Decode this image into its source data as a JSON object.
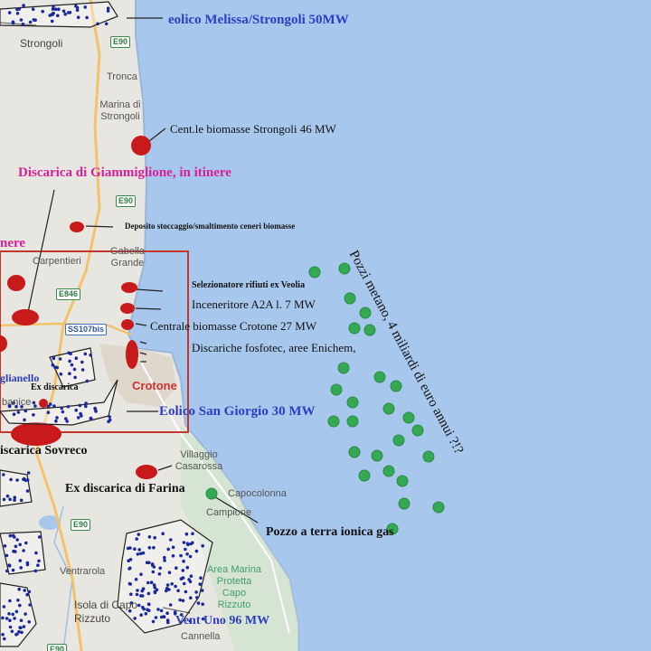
{
  "colors": {
    "sea": "#a8c7ec",
    "land": "#e8e6e0",
    "park": "#cfe3cf",
    "red_marker": "#c8191b",
    "gas_well_marker": "#34a853",
    "wind_dot": "#1c2a99",
    "annotation_blue": "#2b3fc4",
    "annotation_pink": "#d8209a",
    "highlight_box": "#c0392b"
  },
  "annotations": {
    "eolico_melissa": "eolico Melissa/Strongoli 50MW",
    "biomasse_strongoli": "Cent.le biomasse Strongoli 46 MW",
    "discarica_giammiglione": "Discarica di Giammiglione, in itinere",
    "deposito_ceneri": "Deposito stoccaggio/smaltimento ceneri biomasse",
    "itinere_fragment": "nere",
    "selezionatore_veolia": "Selezionatore rifiuti ex Veolia",
    "inceneritore_a2a": "Inceneritore A2A l. 7 MW",
    "biomasse_crotone": "Centrale biomasse Crotone 27 MW",
    "discariche_fosfotec": "Discariche fosfotec, aree Enichem,",
    "pozzi_metano": "Pozzi metano, 4 miliardi di euro annui ?!?",
    "columbra_fragment": "glianello",
    "ex_discarica": "Ex discarica",
    "eolico_san_giorgio": "Eolico San Giorgio 30 MW",
    "discarica_sovreco": "iscarica Sovreco",
    "ex_discarica_farina": "Ex discarica di Farina",
    "pozzo_terra": "Pozzo a terra ionica gas",
    "vent_uno": "Vent Uno 96 MW"
  },
  "places": {
    "strongoli": "Strongoli",
    "tronca": "Tronca",
    "marina_di_strongoli": "Marina di Strongoli",
    "gabella_grande": "Gabella Grande",
    "carpentieri": "Carpentieri",
    "crotone": "Crotone",
    "panice_fragment": "banice",
    "villaggio_casarossa": "Villaggio Casarossa",
    "capocolonna": "Capocolonna",
    "campione": "Campione",
    "ventrarola": "Ventrarola",
    "isola_di_capo_rizzuto": "Isola di Capo Rizzuto",
    "cannella": "Cannella",
    "area_marina_protetta": "Area Marina Protetta Capo Rizzuto"
  },
  "roads": {
    "e90_top": "E90",
    "e90_mid": "E90",
    "e846": "E846",
    "ss107bis": "SS107bis",
    "e90_bottom": "E90",
    "e90_lower": "E90"
  },
  "markers": {
    "red_sites": [
      {
        "name": "biomasse-strongoli"
      },
      {
        "name": "deposito-ceneri"
      },
      {
        "name": "selezionatore-veolia"
      },
      {
        "name": "inceneritore-a2a"
      },
      {
        "name": "biomasse-crotone"
      },
      {
        "name": "discariche-fosfotec"
      },
      {
        "name": "discarica-giammiglione"
      },
      {
        "name": "discarica-sovreco"
      },
      {
        "name": "ex-discarica-farina"
      },
      {
        "name": "ex-discarica"
      }
    ],
    "offshore_gas_wells": 27,
    "onshore_gas_well": 1,
    "wind_farms": [
      "Melissa/Strongoli",
      "San Giorgio",
      "Vent Uno",
      "Isola di Capo Rizzuto"
    ]
  }
}
